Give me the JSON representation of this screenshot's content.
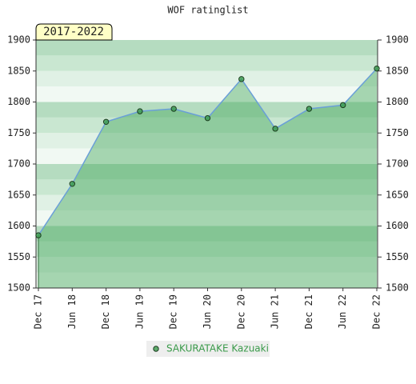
{
  "chart_data": {
    "type": "line",
    "title": "WOF ratinglist",
    "annotation": "2017-2022",
    "categories": [
      "Dec 17",
      "Jun 18",
      "Dec 18",
      "Jun 19",
      "Dec 19",
      "Jun 20",
      "Dec 20",
      "Jun 21",
      "Dec 21",
      "Jun 22",
      "Dec 22"
    ],
    "series": [
      {
        "name": "SAKURATAKE Kazuaki",
        "color": "#3a9a4a",
        "values": [
          1585,
          1668,
          1768,
          1785,
          1789,
          1774,
          1837,
          1757,
          1789,
          1795,
          1854
        ]
      }
    ],
    "line_color": "#6a9fd8",
    "area_color": "#4aa860",
    "ylim": [
      1500,
      1900
    ],
    "yticks": [
      1500,
      1550,
      1600,
      1650,
      1700,
      1750,
      1800,
      1850,
      1900
    ],
    "y2lim": [
      1500,
      1900
    ],
    "y2ticks": [
      1500,
      1550,
      1600,
      1650,
      1700,
      1750,
      1800,
      1850,
      1900
    ]
  }
}
